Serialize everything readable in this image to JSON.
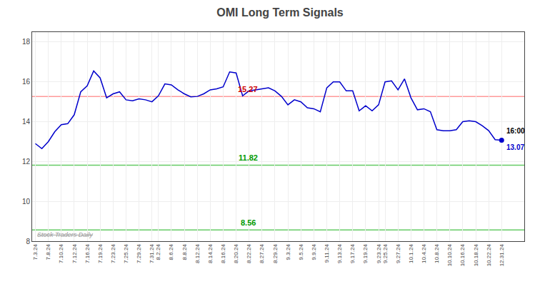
{
  "chart_data": {
    "type": "line",
    "title": "OMI Long Term Signals",
    "categories": [
      "7.3.24",
      null,
      "7.8.24",
      null,
      "7.10.24",
      null,
      "7.12.24",
      null,
      "7.16.24",
      null,
      "7.19.24",
      null,
      "7.23.24",
      null,
      "7.25.24",
      null,
      "7.29.24",
      null,
      "7.31.24",
      "8.2.24",
      null,
      "8.6.24",
      null,
      "8.8.24",
      null,
      "8.12.24",
      null,
      "8.14.24",
      null,
      "8.16.24",
      null,
      "8.20.24",
      null,
      "8.22.24",
      null,
      "8.27.24",
      null,
      "8.29.24",
      null,
      "9.3.24",
      null,
      "9.5.24",
      null,
      "9.9.24",
      null,
      "9.11.24",
      null,
      "9.13.24",
      null,
      "9.17.24",
      null,
      "9.19.24",
      null,
      "9.23.24",
      "9.25.24",
      null,
      "9.27.24",
      null,
      "10.1.24",
      null,
      "10.4.24",
      null,
      "10.8.24",
      null,
      "10.10.24",
      null,
      "10.16.24",
      null,
      "10.18.24",
      null,
      "10.22.24",
      null,
      "12.31.24"
    ],
    "values": [
      12.9,
      12.65,
      13.0,
      13.5,
      13.85,
      13.9,
      14.35,
      15.5,
      15.8,
      16.55,
      16.2,
      15.2,
      15.4,
      15.5,
      15.1,
      15.05,
      15.15,
      15.1,
      15.0,
      15.3,
      15.9,
      15.85,
      15.6,
      15.4,
      15.25,
      15.27,
      15.4,
      15.6,
      15.65,
      15.75,
      16.5,
      16.45,
      15.3,
      15.55,
      15.6,
      15.65,
      15.7,
      15.55,
      15.27,
      14.85,
      15.1,
      15.0,
      14.7,
      14.65,
      14.5,
      15.7,
      16.0,
      16.0,
      15.55,
      15.55,
      14.55,
      14.8,
      14.55,
      14.85,
      16.0,
      16.05,
      15.6,
      16.15,
      15.2,
      14.6,
      14.65,
      14.5,
      13.6,
      13.55,
      13.55,
      13.6,
      14.0,
      14.05,
      14.0,
      13.8,
      13.55,
      13.1,
      13.07
    ],
    "color": "#0000cc",
    "ylim": [
      8,
      18.5
    ],
    "yticks": [
      8,
      10,
      12,
      14,
      16,
      18
    ],
    "grid": true,
    "hlines": [
      {
        "value": 15.27,
        "label": "15.27",
        "color": "#ff9999",
        "label_color": "#cc0000"
      },
      {
        "value": 11.82,
        "label": "11.82",
        "color": "#66cc66",
        "label_color": "#009900"
      },
      {
        "value": 8.56,
        "label": "8.56",
        "color": "#66cc66",
        "label_color": "#009900"
      }
    ],
    "annotations": [
      {
        "text": "16:00",
        "color": "#000000"
      },
      {
        "text": "13.07",
        "color": "#0000cc"
      }
    ],
    "watermark": {
      "text": "Stock Traders Daily",
      "color": "#999999"
    }
  }
}
